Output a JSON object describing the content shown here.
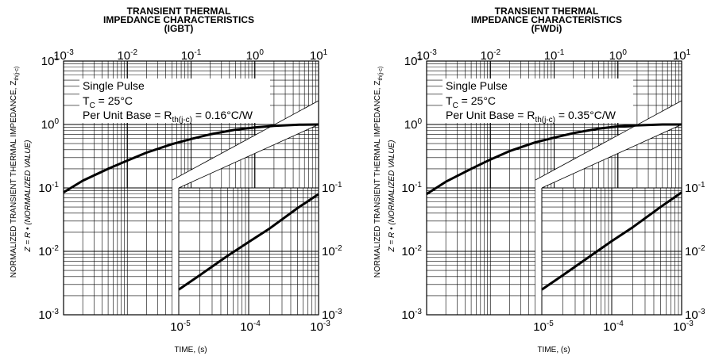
{
  "chart_data": [
    {
      "type": "line",
      "panel_id": "igbt",
      "title": [
        "TRANSIENT THERMAL",
        "IMPEDANCE CHARACTERISTICS",
        "(IGBT)"
      ],
      "xlabel": "TIME, (s)",
      "ylabel": {
        "main": "NORMALIZED TRANSIENT THERMAL IMPEDANCE, Z",
        "main_sub": "th(j-c)",
        "formula": "Z = R • (NORMALIZED VALUE)"
      },
      "annotations": [
        "Single Pulse",
        "T = 25°C",
        "Per Unit Base = R = 0.16°C/W"
      ],
      "tc_sub": "C",
      "rth_sub": "th(j-c)",
      "rth_value": "0.16°C/W",
      "top_xaxis": {
        "scale": "log",
        "range": [
          0.001,
          10
        ],
        "ticks": [
          "10",
          "10",
          "10",
          "10",
          "10"
        ],
        "exps": [
          "-3",
          "-2",
          "-1",
          "0",
          "1"
        ]
      },
      "left_yaxis": {
        "scale": "log",
        "range": [
          0.001,
          10
        ],
        "ticks": [
          "10",
          "10",
          "10",
          "10",
          "10"
        ],
        "exps": [
          "1",
          "0",
          "-1",
          "-2",
          "-3"
        ]
      },
      "bottom_xaxis": {
        "scale": "log",
        "range": [
          1e-05,
          0.001
        ],
        "ticks": [
          "10",
          "10",
          "10"
        ],
        "exps": [
          "-5",
          "-4",
          "-3"
        ]
      },
      "right_yaxis": {
        "scale": "log",
        "range": [
          0.001,
          0.1
        ],
        "ticks": [
          "10",
          "10",
          "10"
        ],
        "exps": [
          "-1",
          "-2",
          "-3"
        ]
      },
      "series": [
        {
          "axes": "top-left",
          "x": [
            0.001,
            0.002,
            0.005,
            0.01,
            0.02,
            0.05,
            0.1,
            0.2,
            0.5,
            1,
            2,
            5,
            10
          ],
          "y": [
            0.085,
            0.13,
            0.2,
            0.27,
            0.36,
            0.49,
            0.59,
            0.7,
            0.83,
            0.9,
            0.95,
            0.99,
            1.0
          ]
        },
        {
          "axes": "bottom-right",
          "x": [
            1e-05,
            2e-05,
            5e-05,
            0.0001,
            0.0002,
            0.0005,
            0.001
          ],
          "y": [
            0.0025,
            0.0042,
            0.0085,
            0.014,
            0.023,
            0.048,
            0.08
          ]
        }
      ]
    },
    {
      "type": "line",
      "panel_id": "fwdi",
      "title": [
        "TRANSIENT THERMAL",
        "IMPEDANCE CHARACTERISTICS",
        "(FWDi)"
      ],
      "xlabel": "TIME, (s)",
      "ylabel": {
        "main": "NORMALIZED TRANSIENT THERMAL IMPEDANCE, Z",
        "main_sub": "th(j-c)",
        "formula": "Z = R • (NORMALIZED VALUE)"
      },
      "annotations": [
        "Single Pulse",
        "T = 25°C",
        "Per Unit Base = R = 0.35°C/W"
      ],
      "tc_sub": "C",
      "rth_sub": "th(j-c)",
      "rth_value": "0.35°C/W",
      "top_xaxis": {
        "scale": "log",
        "range": [
          0.001,
          10
        ],
        "ticks": [
          "10",
          "10",
          "10",
          "10",
          "10"
        ],
        "exps": [
          "-3",
          "-2",
          "-1",
          "0",
          "1"
        ]
      },
      "left_yaxis": {
        "scale": "log",
        "range": [
          0.001,
          10
        ],
        "ticks": [
          "10",
          "10",
          "10",
          "10",
          "10"
        ],
        "exps": [
          "1",
          "0",
          "-1",
          "-2",
          "-3"
        ]
      },
      "bottom_xaxis": {
        "scale": "log",
        "range": [
          1e-05,
          0.001
        ],
        "ticks": [
          "10",
          "10",
          "10"
        ],
        "exps": [
          "-5",
          "-4",
          "-3"
        ]
      },
      "right_yaxis": {
        "scale": "log",
        "range": [
          0.001,
          0.1
        ],
        "ticks": [
          "10",
          "10",
          "10"
        ],
        "exps": [
          "-1",
          "-2",
          "-3"
        ]
      },
      "series": [
        {
          "axes": "top-left",
          "x": [
            0.001,
            0.002,
            0.005,
            0.01,
            0.02,
            0.05,
            0.1,
            0.2,
            0.5,
            1,
            2,
            5,
            10
          ],
          "y": [
            0.08,
            0.125,
            0.2,
            0.28,
            0.38,
            0.52,
            0.62,
            0.73,
            0.86,
            0.93,
            0.97,
            1.0,
            1.0
          ]
        },
        {
          "axes": "bottom-right",
          "x": [
            1e-05,
            2e-05,
            5e-05,
            0.0001,
            0.0002,
            0.0005,
            0.001
          ],
          "y": [
            0.0025,
            0.0042,
            0.0085,
            0.0145,
            0.024,
            0.05,
            0.085
          ]
        }
      ]
    }
  ]
}
